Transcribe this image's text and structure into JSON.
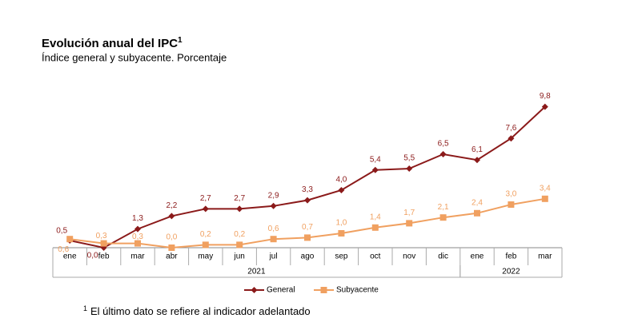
{
  "chart_data": {
    "type": "line",
    "title": "Evolución anual del IPC",
    "title_note": "1",
    "subtitle": "Índice general y subyacente. Porcentaje",
    "category_groups": [
      {
        "label": "2021",
        "categories": [
          "ene",
          "feb",
          "mar",
          "abr",
          "may",
          "jun",
          "jul",
          "ago",
          "sep",
          "oct",
          "nov",
          "dic"
        ]
      },
      {
        "label": "2022",
        "categories": [
          "ene",
          "feb",
          "mar"
        ]
      }
    ],
    "series": [
      {
        "name": "General",
        "color": "#8b1a1a",
        "marker": "diamond",
        "values": [
          0.5,
          0.0,
          1.3,
          2.2,
          2.7,
          2.7,
          2.9,
          3.3,
          4.0,
          5.4,
          5.5,
          6.5,
          6.1,
          7.6,
          9.8
        ],
        "value_labels": [
          "0,5",
          "0,0",
          "1,3",
          "2,2",
          "2,7",
          "2,7",
          "2,9",
          "3,3",
          "4,0",
          "5,4",
          "5,5",
          "6,5",
          "6,1",
          "7,6",
          "9,8"
        ]
      },
      {
        "name": "Subyacente",
        "color": "#f0a060",
        "marker": "square",
        "values": [
          0.6,
          0.3,
          0.3,
          0.0,
          0.2,
          0.2,
          0.6,
          0.7,
          1.0,
          1.4,
          1.7,
          2.1,
          2.4,
          3.0,
          3.4
        ],
        "value_labels": [
          "0,6",
          "0,3",
          "0,3",
          "0,0",
          "0,2",
          "0,2",
          "0,6",
          "0,7",
          "1,0",
          "1,4",
          "1,7",
          "2,1",
          "2,4",
          "3,0",
          "3,4"
        ]
      }
    ],
    "footnote": {
      "mark": "1",
      "text": "El último dato se refiere al indicador adelantado"
    }
  }
}
